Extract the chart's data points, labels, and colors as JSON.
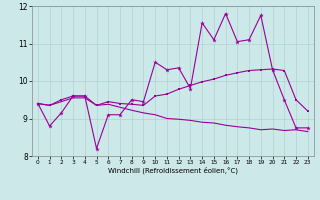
{
  "title": "",
  "xlabel": "Windchill (Refroidissement éolien,°C)",
  "bg_color": "#cce8e8",
  "line_color": "#990099",
  "x": [
    0,
    1,
    2,
    3,
    4,
    5,
    6,
    7,
    8,
    9,
    10,
    11,
    12,
    13,
    14,
    15,
    16,
    17,
    18,
    19,
    20,
    21,
    22,
    23
  ],
  "line1": [
    9.4,
    8.8,
    9.15,
    9.6,
    9.6,
    8.2,
    9.1,
    9.1,
    9.5,
    9.45,
    10.5,
    10.3,
    10.35,
    9.8,
    11.55,
    11.1,
    11.8,
    11.05,
    11.1,
    11.75,
    10.3,
    9.5,
    8.75,
    8.75
  ],
  "line2": [
    9.4,
    9.35,
    9.5,
    9.6,
    9.6,
    9.35,
    9.45,
    9.4,
    9.38,
    9.35,
    9.6,
    9.65,
    9.78,
    9.88,
    9.98,
    10.05,
    10.15,
    10.22,
    10.28,
    10.3,
    10.32,
    10.28,
    9.5,
    9.2
  ],
  "line3": [
    9.4,
    9.35,
    9.45,
    9.55,
    9.55,
    9.35,
    9.38,
    9.3,
    9.22,
    9.15,
    9.1,
    9.0,
    8.98,
    8.95,
    8.9,
    8.88,
    8.82,
    8.78,
    8.75,
    8.7,
    8.72,
    8.68,
    8.7,
    8.65
  ],
  "ylim": [
    8.0,
    12.0
  ],
  "yticks": [
    8,
    9,
    10,
    11,
    12
  ],
  "xlim": [
    -0.5,
    23.5
  ],
  "xticks": [
    0,
    1,
    2,
    3,
    4,
    5,
    6,
    7,
    8,
    9,
    10,
    11,
    12,
    13,
    14,
    15,
    16,
    17,
    18,
    19,
    20,
    21,
    22,
    23
  ]
}
